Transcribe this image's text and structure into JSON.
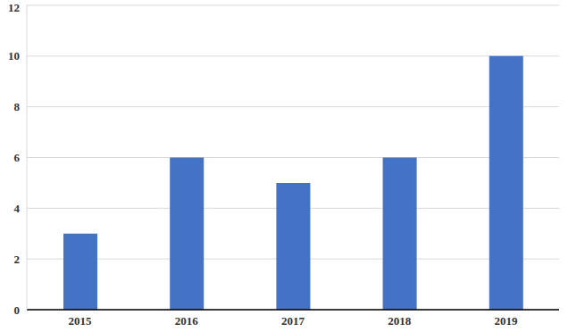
{
  "chart_data": {
    "type": "bar",
    "categories": [
      "2015",
      "2016",
      "2017",
      "2018",
      "2019"
    ],
    "values": [
      3,
      6,
      5,
      6,
      10
    ],
    "color": "#4472c4",
    "ylim": [
      0,
      12
    ],
    "yticks": [
      0,
      2,
      4,
      6,
      8,
      10,
      12
    ],
    "grid": true
  }
}
